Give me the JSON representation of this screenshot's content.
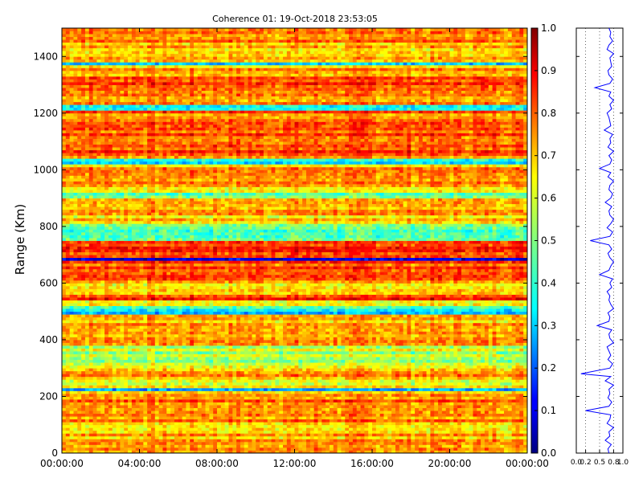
{
  "chart_data": [
    {
      "type": "heatmap",
      "title": "Coherence 01: 19-Oct-2018 23:53:05",
      "ylabel": "Range (Km)",
      "xlabel": "",
      "x_ticks": [
        "00:00:00",
        "04:00:00",
        "08:00:00",
        "12:00:00",
        "16:00:00",
        "20:00:00",
        "00:00:00"
      ],
      "y_ticks": [
        0,
        200,
        400,
        600,
        800,
        1000,
        1200,
        1400
      ],
      "ylim": [
        0,
        1500
      ],
      "colorscale": "jet",
      "band_values": [
        {
          "range": [
            0,
            120
          ],
          "value": 0.72
        },
        {
          "range": [
            120,
            210
          ],
          "value": 0.78
        },
        {
          "range": [
            220,
            232
          ],
          "value": 0.32
        },
        {
          "range": [
            235,
            260
          ],
          "value": 0.62
        },
        {
          "range": [
            260,
            300
          ],
          "value": 0.7
        },
        {
          "range": [
            300,
            380
          ],
          "value": 0.56
        },
        {
          "range": [
            380,
            480
          ],
          "value": 0.7
        },
        {
          "range": [
            488,
            500
          ],
          "value": 0.25
        },
        {
          "range": [
            500,
            518
          ],
          "value": 0.45
        },
        {
          "range": [
            518,
            540
          ],
          "value": 0.68
        },
        {
          "range": [
            540,
            560
          ],
          "value": 0.8
        },
        {
          "range": [
            560,
            600
          ],
          "value": 0.7
        },
        {
          "range": [
            600,
            680
          ],
          "value": 0.78
        },
        {
          "range": [
            683,
            695
          ],
          "value": 0.05
        },
        {
          "range": [
            695,
            750
          ],
          "value": 0.8
        },
        {
          "range": [
            750,
            810
          ],
          "value": 0.45
        },
        {
          "range": [
            810,
            900
          ],
          "value": 0.68
        },
        {
          "range": [
            905,
            920
          ],
          "value": 0.45
        },
        {
          "range": [
            920,
            1020
          ],
          "value": 0.7
        },
        {
          "range": [
            1025,
            1040
          ],
          "value": 0.35
        },
        {
          "range": [
            1040,
            1210
          ],
          "value": 0.78
        },
        {
          "range": [
            1215,
            1228
          ],
          "value": 0.35
        },
        {
          "range": [
            1228,
            1330
          ],
          "value": 0.78
        },
        {
          "range": [
            1370,
            1385
          ],
          "value": 0.25
        },
        {
          "range": [
            1385,
            1500
          ],
          "value": 0.72
        }
      ]
    },
    {
      "type": "colorbar",
      "ticks": [
        0.0,
        0.1,
        0.2,
        0.3,
        0.4,
        0.5,
        0.6,
        0.7,
        0.8,
        0.9,
        1.0
      ],
      "tick_labels": [
        "0.0",
        "0.1",
        "0.2",
        "0.3",
        "0.4",
        "0.5",
        "0.6",
        "0.7",
        "0.8",
        "0.9",
        "1.0"
      ],
      "range": [
        0,
        1
      ]
    },
    {
      "type": "line",
      "xlim": [
        0,
        1
      ],
      "ylim": [
        0,
        1500
      ],
      "x_tick_labels": [
        "0.0",
        "0.2",
        "0.5",
        "0.8",
        "1.0"
      ],
      "x_ticks": [
        0.0,
        0.2,
        0.5,
        0.8,
        1.0
      ],
      "color": "#0000ff",
      "series": [
        {
          "x": [
            0.7,
            0.68,
            0.75,
            0.62,
            0.72,
            0.7,
            0.8,
            0.66,
            0.72,
            0.74,
            0.2,
            0.7,
            0.76,
            0.68,
            0.72,
            0.7,
            0.8,
            0.62,
            0.74,
            0.1,
            0.72,
            0.78,
            0.68,
            0.74,
            0.7,
            0.66,
            0.8,
            0.72,
            0.7,
            0.76,
            0.45,
            0.7,
            0.72,
            0.68,
            0.8,
            0.74,
            0.7,
            0.72,
            0.66,
            0.76,
            0.72,
            0.78,
            0.5,
            0.7,
            0.74,
            0.8,
            0.72,
            0.68,
            0.76,
            0.7,
            0.3,
            0.72,
            0.78,
            0.66,
            0.74,
            0.8,
            0.72,
            0.7,
            0.76,
            0.62,
            0.74,
            0.78,
            0.7,
            0.72,
            0.8,
            0.68,
            0.74,
            0.5,
            0.72,
            0.76,
            0.7,
            0.8,
            0.68,
            0.74,
            0.72,
            0.78,
            0.6,
            0.74,
            0.72,
            0.7,
            0.66,
            0.76,
            0.72,
            0.8,
            0.7,
            0.74,
            0.4,
            0.72,
            0.78,
            0.7,
            0.68,
            0.76,
            0.74,
            0.72,
            0.8,
            0.66,
            0.7,
            0.78,
            0.72,
            0.74,
            0.7
          ],
          "y": [
            0,
            15,
            30,
            45,
            60,
            75,
            90,
            105,
            120,
            135,
            150,
            165,
            180,
            195,
            210,
            225,
            240,
            255,
            270,
            280,
            300,
            315,
            330,
            345,
            360,
            375,
            390,
            405,
            420,
            435,
            450,
            465,
            480,
            495,
            510,
            525,
            540,
            555,
            570,
            585,
            600,
            615,
            630,
            645,
            660,
            675,
            690,
            705,
            720,
            735,
            750,
            765,
            780,
            795,
            810,
            825,
            840,
            855,
            870,
            885,
            900,
            915,
            930,
            945,
            960,
            975,
            990,
            1005,
            1020,
            1035,
            1050,
            1065,
            1080,
            1095,
            1110,
            1125,
            1140,
            1155,
            1170,
            1185,
            1200,
            1215,
            1230,
            1245,
            1260,
            1275,
            1290,
            1305,
            1320,
            1335,
            1350,
            1365,
            1380,
            1395,
            1410,
            1425,
            1440,
            1455,
            1470,
            1485,
            1500
          ]
        }
      ]
    }
  ]
}
